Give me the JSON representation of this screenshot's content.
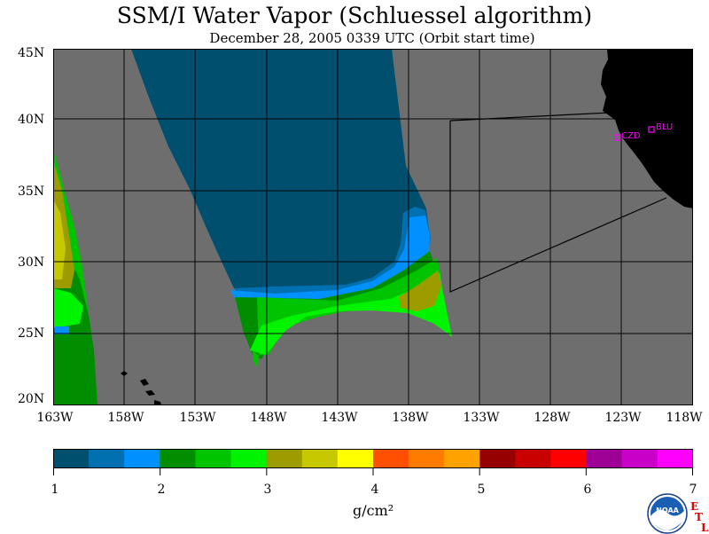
{
  "title": "SSM/I Water Vapor (Schluessel algorithm)",
  "subtitle": "December 28, 2005  0339 UTC  (Orbit start time)",
  "lat_labels": [
    "45N",
    "40N",
    "35N",
    "30N",
    "25N",
    "20N"
  ],
  "lon_labels": [
    "163W",
    "158W",
    "153W",
    "148W",
    "143W",
    "138W",
    "133W",
    "128W",
    "123W",
    "118W"
  ],
  "stations": [
    {
      "name": "BLU",
      "lon": -120.7,
      "lat": 39.3
    },
    {
      "name": "CZD",
      "lon": -123.0,
      "lat": 38.6
    }
  ],
  "colorbar": {
    "ticks": [
      "1",
      "2",
      "3",
      "4",
      "5",
      "6",
      "7"
    ],
    "unit": "g/cm²",
    "colors": [
      "#004f6f",
      "#0070b0",
      "#0090ff",
      "#008e00",
      "#00c400",
      "#00f400",
      "#9c9c00",
      "#c8c800",
      "#ffff00",
      "#ff4f00",
      "#ff7c00",
      "#ffa200",
      "#960000",
      "#c80000",
      "#ff0000",
      "#9e0096",
      "#c800c8",
      "#ff00ff"
    ]
  },
  "colors": {
    "missing": "#6e6e6e",
    "land": "#000000",
    "station": "#ff00ff"
  },
  "logo": {
    "name": "noaa-logo",
    "text": "NOAA",
    "badge": "ETL"
  }
}
